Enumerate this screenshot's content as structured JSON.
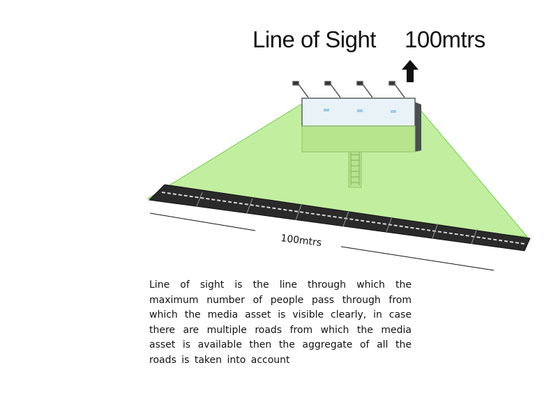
{
  "header": {
    "title": "Line of Sight",
    "distance": "100mtrs"
  },
  "icons": {
    "arrow": "arrow-up-icon"
  },
  "diagram": {
    "road_length_label": "100mtrs"
  },
  "description": "Line of sight is the line through which the maximum number of people pass through from which the media asset is visible clearly, in case there are multiple roads from which the media asset is available then the aggregate of all the roads is taken into account",
  "colors": {
    "sight_area": "#c2eea0",
    "sight_edge": "#6ccf47",
    "road": "#2a2a2a",
    "road_marking": "#d8d8d8",
    "billboard_face": "#e9f2f6",
    "billboard_back": "#4a4e50",
    "billboard_pole": "#b6e58e"
  }
}
